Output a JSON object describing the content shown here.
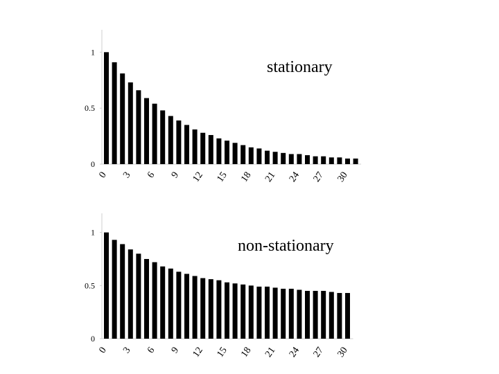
{
  "chart_data": [
    {
      "type": "bar",
      "annotation": "stationary",
      "color": "#000000",
      "categories": [
        "0",
        null,
        null,
        "3",
        null,
        null,
        "6",
        null,
        null,
        "9",
        null,
        null,
        "12",
        null,
        null,
        "15",
        null,
        null,
        "18",
        null,
        null,
        "21",
        null,
        null,
        "24",
        null,
        null,
        "27",
        null,
        null,
        "30",
        null
      ],
      "values": [
        1.0,
        0.91,
        0.81,
        0.73,
        0.66,
        0.59,
        0.54,
        0.48,
        0.43,
        0.39,
        0.35,
        0.31,
        0.28,
        0.26,
        0.23,
        0.21,
        0.19,
        0.17,
        0.15,
        0.14,
        0.12,
        0.11,
        0.1,
        0.09,
        0.09,
        0.08,
        0.07,
        0.07,
        0.06,
        0.06,
        0.05,
        0.05
      ],
      "ylim": [
        0,
        1.2
      ],
      "yticks": [
        0,
        0.5,
        1
      ]
    },
    {
      "type": "bar",
      "annotation": "non-stationary",
      "color": "#000000",
      "categories": [
        "0",
        null,
        null,
        "3",
        null,
        null,
        "6",
        null,
        null,
        "9",
        null,
        null,
        "12",
        null,
        null,
        "15",
        null,
        null,
        "18",
        null,
        null,
        "21",
        null,
        null,
        "24",
        null,
        null,
        "27",
        null,
        null,
        "30"
      ],
      "values": [
        1.0,
        0.93,
        0.89,
        0.84,
        0.8,
        0.75,
        0.72,
        0.68,
        0.66,
        0.63,
        0.61,
        0.59,
        0.57,
        0.56,
        0.55,
        0.53,
        0.52,
        0.51,
        0.5,
        0.49,
        0.49,
        0.48,
        0.47,
        0.47,
        0.46,
        0.45,
        0.45,
        0.45,
        0.44,
        0.43,
        0.43
      ],
      "ylim": [
        0,
        1.18
      ],
      "yticks": [
        0,
        0.5,
        1
      ]
    }
  ]
}
